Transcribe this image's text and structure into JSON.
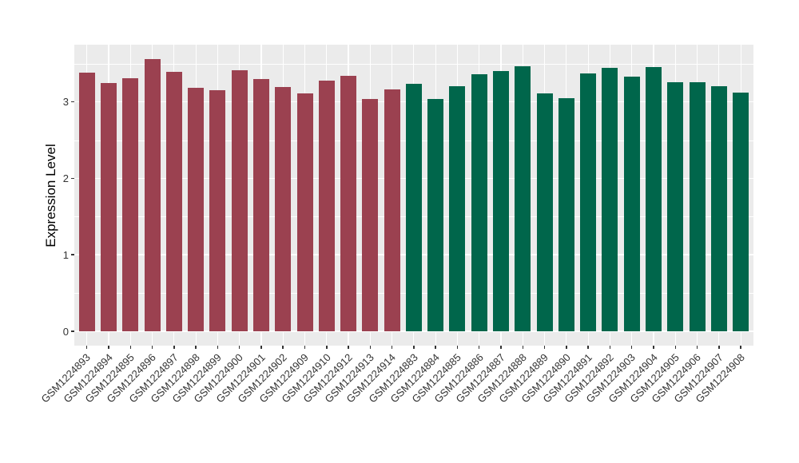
{
  "figure": {
    "background_color": "#FFFFFF",
    "panel_background_color": "#EBEBEB",
    "gridline_color": "#FFFFFF",
    "axis_text_color": "#333333",
    "axis_title_color": "#000000"
  },
  "chart_data": {
    "type": "bar",
    "title": "",
    "xlabel": "",
    "ylabel": "Expression Level",
    "ylim": [
      0,
      3.75
    ],
    "yticks": [
      0,
      1,
      2,
      3
    ],
    "minor_gridlines": [
      0.5,
      1.5,
      2.5,
      3.5
    ],
    "grid": "white major and minor gridlines on gray panel (ggplot style)",
    "legend_position": "none",
    "x_tick_angle_deg": 45,
    "group_colors": {
      "red": "#9B4150",
      "green": "#00664B"
    },
    "categories": [
      "GSM1224893",
      "GSM1224894",
      "GSM1224895",
      "GSM1224896",
      "GSM1224897",
      "GSM1224898",
      "GSM1224899",
      "GSM1224900",
      "GSM1224901",
      "GSM1224902",
      "GSM1224909",
      "GSM1224910",
      "GSM1224912",
      "GSM1224913",
      "GSM1224914",
      "GSM1224883",
      "GSM1224884",
      "GSM1224885",
      "GSM1224886",
      "GSM1224887",
      "GSM1224888",
      "GSM1224889",
      "GSM1224890",
      "GSM1224891",
      "GSM1224892",
      "GSM1224903",
      "GSM1224904",
      "GSM1224905",
      "GSM1224906",
      "GSM1224907",
      "GSM1224908"
    ],
    "values": [
      3.38,
      3.25,
      3.31,
      3.56,
      3.39,
      3.18,
      3.15,
      3.41,
      3.3,
      3.2,
      3.11,
      3.28,
      3.34,
      3.04,
      3.16,
      3.24,
      3.04,
      3.21,
      3.36,
      3.4,
      3.47,
      3.11,
      3.05,
      3.37,
      3.45,
      3.33,
      3.46,
      3.26,
      3.26,
      3.21,
      3.12
    ],
    "groups": [
      "red",
      "red",
      "red",
      "red",
      "red",
      "red",
      "red",
      "red",
      "red",
      "red",
      "red",
      "red",
      "red",
      "red",
      "red",
      "green",
      "green",
      "green",
      "green",
      "green",
      "green",
      "green",
      "green",
      "green",
      "green",
      "green",
      "green",
      "green",
      "green",
      "green",
      "green"
    ]
  }
}
